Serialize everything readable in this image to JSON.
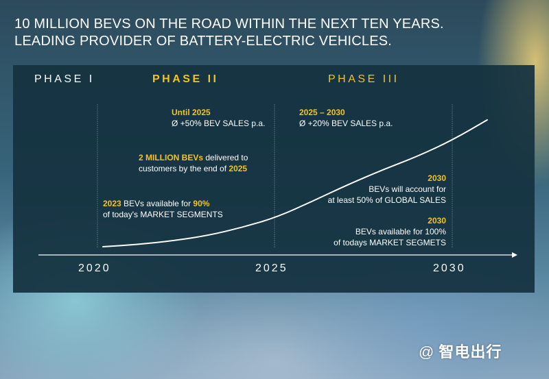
{
  "headline": {
    "line1": "10 MILLION BEVS ON THE ROAD WITHIN THE NEXT TEN YEARS.",
    "line2": "LEADING PROVIDER OF BATTERY-ELECTRIC VEHICLES."
  },
  "phases": {
    "phase1": "PHASE I",
    "phase2": "PHASE II",
    "phase3": "PHASE III"
  },
  "notes": {
    "until2025": {
      "title": "Until 2025",
      "text": "Ø +50% BEV SALES p.a."
    },
    "range2025_2030": {
      "title": "2025 – 2030",
      "text": "Ø +20% BEV SALES p.a."
    },
    "two_million": {
      "highlight": "2 MILLION BEVs",
      "text_a": " delivered to",
      "text_b": "customers by the end of ",
      "highlight_b": "2025"
    },
    "bevs_2023": {
      "highlight": "2023",
      "text_a": " BEVs available for ",
      "highlight_b": "90%",
      "text_b": "of today's MARKET SEGMENTS"
    },
    "global_2030": {
      "title": "2030",
      "line1": "BEVs will account for",
      "line2": "at least 50% of GLOBAL SALES"
    },
    "segments_2030": {
      "title": "2030",
      "line1": "BEVs available for 100%",
      "line2": "of todays MARKET SEGMETS"
    }
  },
  "axis": {
    "years": [
      "2020",
      "2025",
      "2030"
    ]
  },
  "chart_data": {
    "type": "line",
    "x": [
      2020,
      2021,
      2022,
      2023,
      2024,
      2025,
      2026,
      2027,
      2028,
      2029,
      2030,
      2031
    ],
    "y": [
      0,
      0.3,
      0.8,
      1.5,
      2.6,
      4.0,
      6.1,
      8.3,
      10.3,
      12.1,
      14.3,
      17.0
    ],
    "series": [
      {
        "values": [
          0,
          0.3,
          0.8,
          1.5,
          2.6,
          4.0,
          6.1,
          8.3,
          10.3,
          12.1,
          14.3,
          17.0
        ]
      }
    ],
    "categories": [
      "2020",
      "2025",
      "2030"
    ],
    "title": "",
    "xlabel": "",
    "ylabel": "",
    "grid": false
  },
  "colors": {
    "accent": "#f3c321",
    "panel": "#14323f",
    "text": "#ffffff",
    "divider": "#4a6b78"
  },
  "watermark": {
    "at": "@",
    "text": "智电出行"
  }
}
